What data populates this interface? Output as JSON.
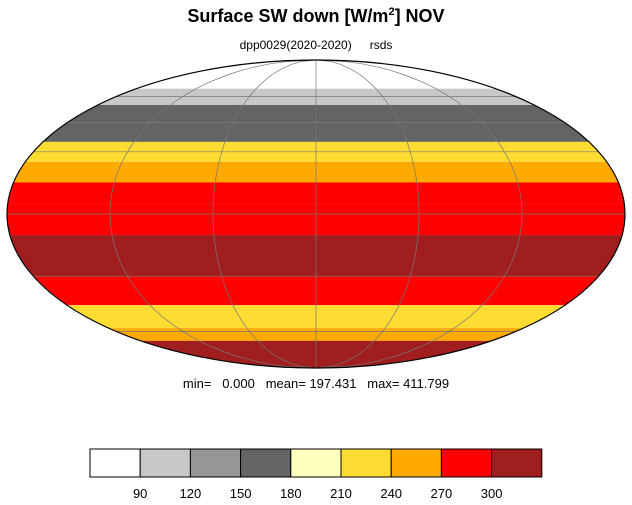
{
  "figure": {
    "title_main": "Surface SW down [W/m",
    "title_sup": "2",
    "title_end": "]  NOV",
    "subtitle_left": "dpp0029(2020-2020)",
    "subtitle_right": "rsds",
    "stats": {
      "min_label": "min=",
      "min_value": "0.000",
      "mean_label": "mean=",
      "mean_value": "197.431",
      "max_label": "max=",
      "max_value": "411.799"
    }
  },
  "chart_data": {
    "type": "heatmap",
    "projection": "mollweide",
    "grid": true,
    "colorbar": {
      "levels": [
        90,
        120,
        150,
        180,
        210,
        240,
        270,
        300
      ],
      "tick_labels": [
        "90",
        "120",
        "150",
        "180",
        "210",
        "240",
        "270",
        "300"
      ],
      "colors": [
        "#ffffff",
        "#c8c8c8",
        "#969696",
        "#646464",
        "#ffffc0",
        "#ffdc32",
        "#ffaa00",
        "#ff0000",
        "#a01e1e"
      ]
    },
    "zonal_bands": [
      {
        "lat_max": 90,
        "lat_min": 65,
        "value": 0
      },
      {
        "lat_max": 65,
        "lat_min": 55,
        "value": 110
      },
      {
        "lat_max": 55,
        "lat_min": 45,
        "value": 150
      },
      {
        "lat_max": 45,
        "lat_min": 35,
        "value": 175
      },
      {
        "lat_max": 35,
        "lat_min": 25,
        "value": 220
      },
      {
        "lat_max": 25,
        "lat_min": 15,
        "value": 245
      },
      {
        "lat_max": 15,
        "lat_min": 5,
        "value": 275
      },
      {
        "lat_max": 5,
        "lat_min": -10,
        "value": 290
      },
      {
        "lat_max": -10,
        "lat_min": -30,
        "value": 310
      },
      {
        "lat_max": -30,
        "lat_min": -45,
        "value": 280
      },
      {
        "lat_max": -45,
        "lat_min": -58,
        "value": 215
      },
      {
        "lat_max": -58,
        "lat_min": -66,
        "value": 240
      },
      {
        "lat_max": -66,
        "lat_min": -90,
        "value": 310
      }
    ]
  }
}
